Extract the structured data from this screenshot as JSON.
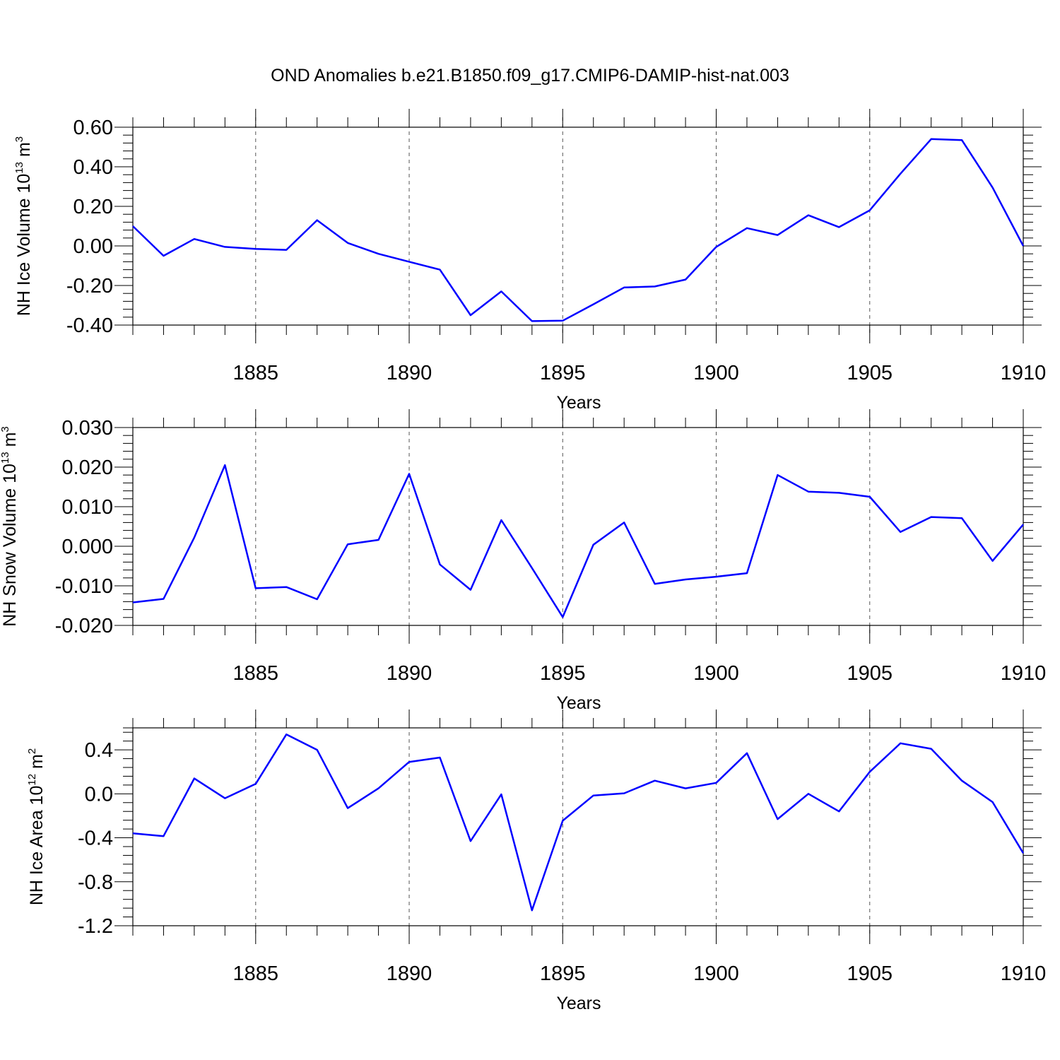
{
  "chart_data": {
    "title": "OND Anomalies b.e21.B1850.f09_g17.CMIP6-DAMIP-hist-nat.003",
    "panels": [
      {
        "type": "line",
        "ylabel_main": "NH Ice Volume 10",
        "ylabel_sup": "13",
        "ylabel_unit": " m",
        "ylabel_unit_sup": "3",
        "xlabel": "Years",
        "xlim": [
          1881,
          1910
        ],
        "ylim": [
          -0.4,
          0.6
        ],
        "yticks": [
          -0.4,
          -0.2,
          0.0,
          0.2,
          0.4,
          0.6
        ],
        "ytick_labels": [
          "-0.40",
          "-0.20",
          "0.00",
          "0.20",
          "0.40",
          "0.60"
        ],
        "series_color": "#0000ff",
        "x": [
          1881,
          1882,
          1883,
          1884,
          1885,
          1886,
          1887,
          1888,
          1889,
          1890,
          1891,
          1892,
          1893,
          1894,
          1895,
          1896,
          1897,
          1898,
          1899,
          1900,
          1901,
          1902,
          1903,
          1904,
          1905,
          1906,
          1907,
          1908,
          1909,
          1910
        ],
        "values": [
          0.1,
          -0.05,
          0.035,
          -0.005,
          -0.015,
          -0.02,
          0.13,
          0.015,
          -0.04,
          -0.08,
          -0.12,
          -0.35,
          -0.23,
          -0.38,
          -0.378,
          -0.295,
          -0.21,
          -0.205,
          -0.17,
          -0.005,
          0.09,
          0.055,
          0.155,
          0.095,
          0.18,
          0.365,
          0.54,
          0.535,
          0.295,
          0.0
        ]
      },
      {
        "type": "line",
        "ylabel_main": "NH Snow Volume 10",
        "ylabel_sup": "13",
        "ylabel_unit": " m",
        "ylabel_unit_sup": "3",
        "xlabel": "Years",
        "xlim": [
          1881,
          1910
        ],
        "ylim": [
          -0.02,
          0.03
        ],
        "yticks": [
          -0.02,
          -0.01,
          0.0,
          0.01,
          0.02,
          0.03
        ],
        "ytick_labels": [
          "-0.020",
          "-0.010",
          "0.000",
          "0.010",
          "0.020",
          "0.030"
        ],
        "series_color": "#0000ff",
        "x": [
          1881,
          1882,
          1883,
          1884,
          1885,
          1886,
          1887,
          1888,
          1889,
          1890,
          1891,
          1892,
          1893,
          1894,
          1895,
          1896,
          1897,
          1898,
          1899,
          1900,
          1901,
          1902,
          1903,
          1904,
          1905,
          1906,
          1907,
          1908,
          1909,
          1910
        ],
        "values": [
          -0.0142,
          -0.0133,
          0.0022,
          0.0205,
          -0.0106,
          -0.0103,
          -0.0134,
          0.0005,
          0.0016,
          0.0183,
          -0.0046,
          -0.011,
          0.0066,
          -0.0055,
          -0.0179,
          0.0004,
          0.006,
          -0.0095,
          -0.0084,
          -0.0077,
          -0.0068,
          0.018,
          0.0138,
          0.0135,
          0.0125,
          0.0036,
          0.0074,
          0.0071,
          -0.0037,
          0.0055
        ]
      },
      {
        "type": "line",
        "ylabel_main": "NH Ice Area 10",
        "ylabel_sup": "12",
        "ylabel_unit": " m",
        "ylabel_unit_sup": "2",
        "xlabel": "Years",
        "xlim": [
          1881,
          1910
        ],
        "ylim": [
          -1.2,
          0.6
        ],
        "yticks": [
          -1.2,
          -0.8,
          -0.4,
          0.0,
          0.4
        ],
        "ytick_labels": [
          "-1.2",
          "-0.8",
          "-0.4",
          "0.0",
          "0.4"
        ],
        "series_color": "#0000ff",
        "x": [
          1881,
          1882,
          1883,
          1884,
          1885,
          1886,
          1887,
          1888,
          1889,
          1890,
          1891,
          1892,
          1893,
          1894,
          1895,
          1896,
          1897,
          1898,
          1899,
          1900,
          1901,
          1902,
          1903,
          1904,
          1905,
          1906,
          1907,
          1908,
          1909,
          1910
        ],
        "values": [
          -0.36,
          -0.385,
          0.14,
          -0.04,
          0.09,
          0.54,
          0.4,
          -0.13,
          0.05,
          0.29,
          0.33,
          -0.43,
          -0.005,
          -1.06,
          -0.245,
          -0.015,
          0.005,
          0.12,
          0.05,
          0.1,
          0.37,
          -0.23,
          0.0,
          -0.16,
          0.2,
          0.46,
          0.41,
          0.12,
          -0.075,
          -0.54
        ]
      }
    ],
    "xticks": [
      1885,
      1890,
      1895,
      1900,
      1905,
      1910
    ],
    "xtick_labels": [
      "1885",
      "1890",
      "1895",
      "1900",
      "1905",
      "1910"
    ],
    "grid": "vertical dashed at major x ticks"
  }
}
